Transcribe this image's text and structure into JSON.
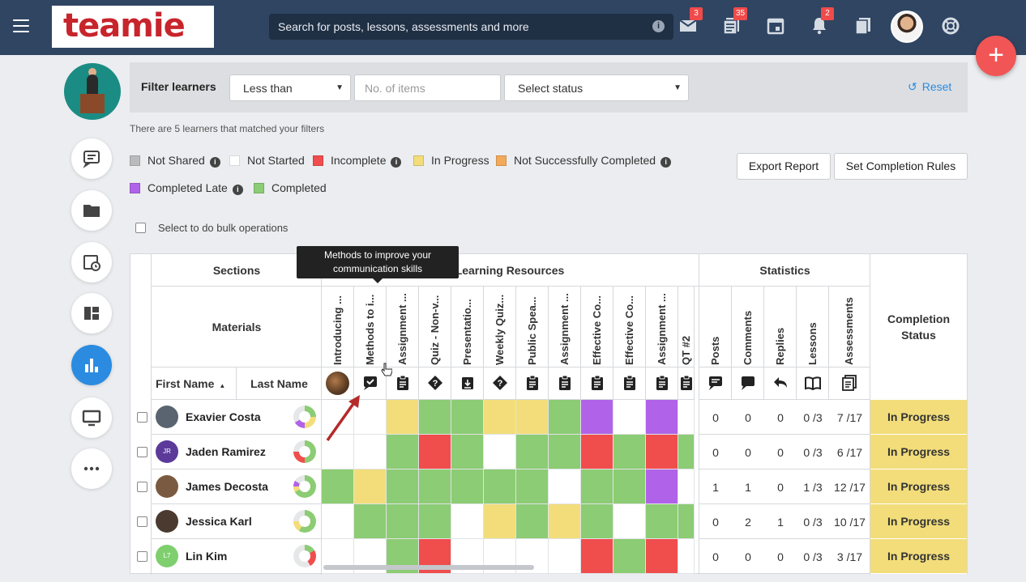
{
  "header": {
    "logo_text": "teamie",
    "search_placeholder": "Search for posts, lessons, assessments and more",
    "badges": {
      "messages": "3",
      "posts": "35",
      "notifications": "2"
    },
    "fab_label": "+"
  },
  "filter": {
    "label": "Filter learners",
    "comparison": "Less than",
    "items_placeholder": "No. of items",
    "status_placeholder": "Select status",
    "reset_label": "Reset"
  },
  "match_text": "There are 5 learners that matched your filters",
  "legend": [
    {
      "label": "Not Shared",
      "color": "#b9bbbd",
      "info": true
    },
    {
      "label": "Not Started",
      "color": "#ffffff",
      "info": false
    },
    {
      "label": "Incomplete",
      "color": "#f04d4d",
      "info": true
    },
    {
      "label": "In Progress",
      "color": "#f2dd7a",
      "info": false
    },
    {
      "label": "Not Successfully Completed",
      "color": "#f3a95a",
      "info": true
    },
    {
      "label": "Completed Late",
      "color": "#b063e8",
      "info": true
    },
    {
      "label": "Completed",
      "color": "#8ccc74",
      "info": false
    }
  ],
  "actions": {
    "export": "Export Report",
    "rules": "Set Completion Rules"
  },
  "bulk_label": "Select to do bulk operations",
  "table": {
    "sections_header": "Sections",
    "resources_header": "Learning Resources",
    "statistics_header": "Statistics",
    "materials_header": "Materials",
    "completion_header": "Completion Status",
    "first_name_header": "First Name",
    "last_name_header": "Last Name",
    "materials": [
      {
        "label": "Introducing ...",
        "icon": "image-thumb"
      },
      {
        "label": "Methods to i...",
        "icon": "chat-check-icon"
      },
      {
        "label": "Assignment ...",
        "icon": "clipboard-icon"
      },
      {
        "label": "Quiz - Non-v...",
        "icon": "question-diamond-icon"
      },
      {
        "label": "Presentatio...",
        "icon": "download-icon"
      },
      {
        "label": "Weekly Quiz...",
        "icon": "question-diamond-icon"
      },
      {
        "label": "Public Spea...",
        "icon": "clipboard-icon"
      },
      {
        "label": "Assignment ...",
        "icon": "clipboard-icon"
      },
      {
        "label": "Effective Co...",
        "icon": "clipboard-icon"
      },
      {
        "label": "Effective Co...",
        "icon": "clipboard-icon"
      },
      {
        "label": "Assignment ...",
        "icon": "clipboard-icon"
      },
      {
        "label": "QT #2",
        "icon": "clipboard-icon"
      }
    ],
    "stat_columns": [
      "Posts",
      "Comments",
      "Replies",
      "Lessons",
      "Assessments"
    ],
    "learners": [
      {
        "name": "Exavier Costa",
        "initials": "",
        "avatar_color": "#5a6470",
        "cells": [
          "white",
          "white",
          "yellow",
          "green",
          "green",
          "yellow",
          "yellow",
          "green",
          "purple",
          "white",
          "purple",
          "white"
        ],
        "stats": [
          "0",
          "0",
          "0",
          "0 /3",
          "7 /17"
        ],
        "status": "In Progress"
      },
      {
        "name": "Jaden Ramirez",
        "initials": "JR",
        "avatar_color": "#5b3a9a",
        "cells": [
          "white",
          "white",
          "green",
          "red",
          "green",
          "white",
          "green",
          "green",
          "red",
          "green",
          "red",
          "green"
        ],
        "stats": [
          "0",
          "0",
          "0",
          "0 /3",
          "6 /17"
        ],
        "status": "In Progress"
      },
      {
        "name": "James Decosta",
        "initials": "",
        "avatar_color": "#7a5a40",
        "cells": [
          "green",
          "yellow",
          "green",
          "green",
          "green",
          "green",
          "green",
          "white",
          "green",
          "green",
          "purple",
          "white"
        ],
        "stats": [
          "1",
          "1",
          "0",
          "1 /3",
          "12 /17"
        ],
        "status": "In Progress"
      },
      {
        "name": "Jessica Karl",
        "initials": "",
        "avatar_color": "#4a3a30",
        "cells": [
          "white",
          "green",
          "green",
          "green",
          "white",
          "yellow",
          "green",
          "yellow",
          "green",
          "white",
          "green",
          "green"
        ],
        "stats": [
          "0",
          "2",
          "1",
          "0 /3",
          "10 /17"
        ],
        "status": "In Progress"
      },
      {
        "name": "Lin Kim",
        "initials": "L7",
        "avatar_color": "#7fcf6f",
        "cells": [
          "white",
          "white",
          "green",
          "red",
          "white",
          "white",
          "white",
          "white",
          "red",
          "green",
          "red",
          "white"
        ],
        "stats": [
          "0",
          "0",
          "0",
          "0 /3",
          "3 /17"
        ],
        "status": "In Progress"
      }
    ]
  },
  "tooltip": "Methods to improve your communication skills",
  "colors": {
    "white": "#ffffff",
    "green": "#8ccc74",
    "yellow": "#f2dd7a",
    "red": "#f04d4d",
    "purple": "#b063e8",
    "topbar": "#2f4562",
    "accent": "#2b8be0"
  }
}
